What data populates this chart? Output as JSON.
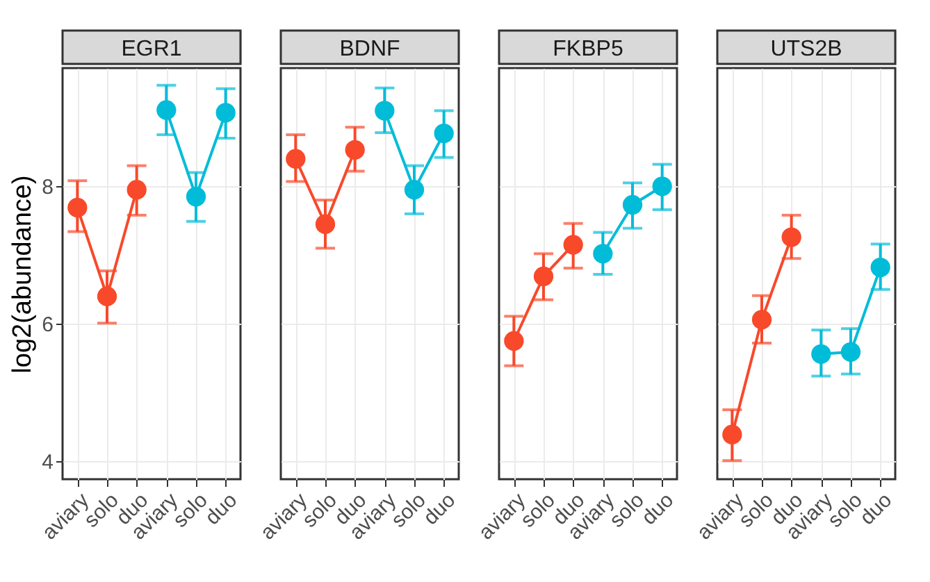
{
  "chart_data": [
    {
      "type": "line",
      "title": "EGR1",
      "ylabel": "log2(abundance)",
      "categories": [
        "aviary",
        "solo",
        "duo",
        "aviary",
        "solo",
        "duo"
      ],
      "ylim": [
        3.74,
        9.72
      ],
      "yticks": [
        4,
        6,
        8
      ],
      "grid": true,
      "marker": "circle",
      "line_style": "solid",
      "series": [
        {
          "color": "#f8492b",
          "values": [
            7.69,
            6.4,
            7.95,
            null,
            null,
            null
          ],
          "errors": [
            [
              7.34,
              8.08
            ],
            [
              6.01,
              6.77
            ],
            [
              7.58,
              8.3
            ],
            null,
            null,
            null
          ]
        },
        {
          "color": "#00bcd8",
          "values": [
            null,
            null,
            null,
            9.11,
            7.85,
            9.07
          ],
          "errors": [
            null,
            null,
            null,
            [
              8.75,
              9.47
            ],
            [
              7.49,
              8.2
            ],
            [
              8.7,
              9.42
            ]
          ]
        }
      ]
    },
    {
      "type": "line",
      "title": "BDNF",
      "categories": [
        "aviary",
        "solo",
        "duo",
        "aviary",
        "solo",
        "duo"
      ],
      "ylim": [
        3.74,
        9.72
      ],
      "yticks": [
        4,
        6,
        8
      ],
      "tick_labels": "x",
      "grid": true,
      "marker": "circle",
      "line_style": "solid",
      "series": [
        {
          "color": "#f8492b",
          "values": [
            8.4,
            7.45,
            8.53,
            null,
            null,
            null
          ],
          "errors": [
            [
              8.07,
              8.75
            ],
            [
              7.1,
              7.8
            ],
            [
              8.22,
              8.86
            ],
            null,
            null,
            null
          ]
        },
        {
          "color": "#00bcd8",
          "values": [
            null,
            null,
            null,
            9.1,
            7.95,
            8.77
          ],
          "errors": [
            null,
            null,
            null,
            [
              8.78,
              9.43
            ],
            [
              7.6,
              8.3
            ],
            [
              8.42,
              9.1
            ]
          ]
        }
      ]
    },
    {
      "type": "line",
      "title": "FKBP5",
      "categories": [
        "aviary",
        "solo",
        "duo",
        "aviary",
        "solo",
        "duo"
      ],
      "ylim": [
        3.74,
        9.72
      ],
      "yticks": [
        4,
        6,
        8
      ],
      "tick_labels": "x",
      "grid": true,
      "marker": "circle",
      "line_style": "solid",
      "series": [
        {
          "color": "#f8492b",
          "values": [
            5.75,
            6.69,
            7.15,
            null,
            null,
            null
          ],
          "errors": [
            [
              5.39,
              6.11
            ],
            [
              6.35,
              7.02
            ],
            [
              6.81,
              7.46
            ],
            null,
            null,
            null
          ]
        },
        {
          "color": "#00bcd8",
          "values": [
            null,
            null,
            null,
            7.02,
            7.73,
            8.0
          ],
          "errors": [
            null,
            null,
            null,
            [
              6.72,
              7.33
            ],
            [
              7.39,
              8.05
            ],
            [
              7.66,
              8.32
            ]
          ]
        }
      ]
    },
    {
      "type": "line",
      "title": "UTS2B",
      "categories": [
        "aviary",
        "solo",
        "duo",
        "aviary",
        "solo",
        "duo"
      ],
      "ylim": [
        3.74,
        9.72
      ],
      "yticks": [
        4,
        6,
        8
      ],
      "tick_labels": "x",
      "grid": true,
      "marker": "circle",
      "line_style": "solid",
      "series": [
        {
          "color": "#f8492b",
          "values": [
            4.39,
            6.06,
            7.26,
            null,
            null,
            null
          ],
          "errors": [
            [
              4.01,
              4.75
            ],
            [
              5.72,
              6.41
            ],
            [
              6.95,
              7.58
            ],
            null,
            null,
            null
          ]
        },
        {
          "color": "#00bcd8",
          "values": [
            null,
            null,
            null,
            5.56,
            5.59,
            6.82
          ],
          "errors": [
            null,
            null,
            null,
            [
              5.24,
              5.91
            ],
            [
              5.27,
              5.93
            ],
            [
              6.5,
              7.16
            ]
          ]
        }
      ]
    }
  ]
}
